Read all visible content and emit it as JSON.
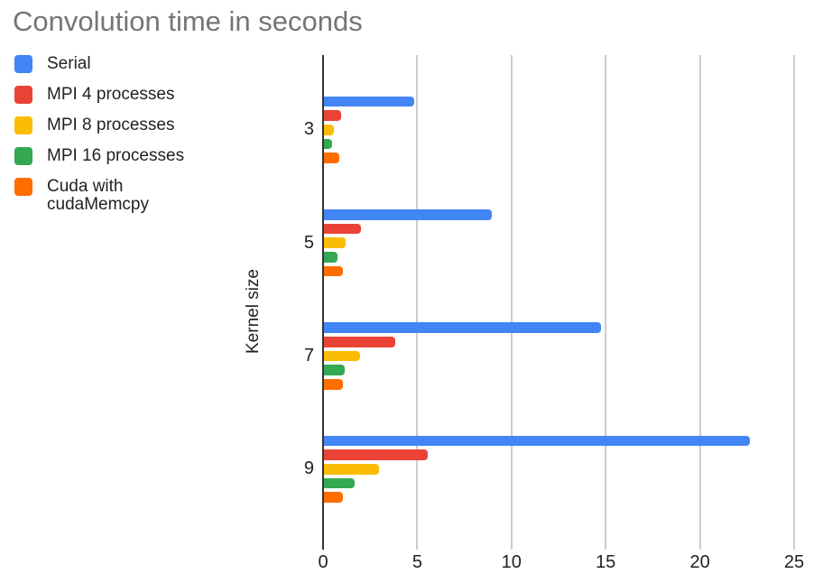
{
  "chart_data": {
    "type": "bar",
    "orientation": "horizontal",
    "title": "Convolution time in seconds",
    "xlabel": "",
    "ylabel": "Kernel size",
    "categories": [
      "3",
      "5",
      "7",
      "9"
    ],
    "series": [
      {
        "name": "Serial",
        "color": "#4285F4",
        "values": [
          4.8,
          8.9,
          14.7,
          22.6
        ]
      },
      {
        "name": "MPI 4 processes",
        "color": "#EA4335",
        "values": [
          0.9,
          1.95,
          3.8,
          5.5
        ]
      },
      {
        "name": "MPI 8 processes",
        "color": "#FBBC04",
        "values": [
          0.55,
          1.15,
          1.9,
          2.9
        ]
      },
      {
        "name": "MPI 16 processes",
        "color": "#34A853",
        "values": [
          0.45,
          0.7,
          1.1,
          1.65
        ]
      },
      {
        "name": "Cuda with cudaMemcpy",
        "color": "#FF6D01",
        "values": [
          0.8,
          1.0,
          1.0,
          1.0
        ]
      }
    ],
    "value_axis": {
      "min": 0,
      "max": 25,
      "ticks": [
        0,
        5,
        10,
        15,
        20,
        25
      ]
    },
    "grid": true,
    "legend_position": "top-left",
    "colors": {
      "title_text": "#757575",
      "label_text": "#222222",
      "gridline": "#cccccc",
      "axis_baseline": "#333333",
      "background": "#ffffff"
    }
  }
}
